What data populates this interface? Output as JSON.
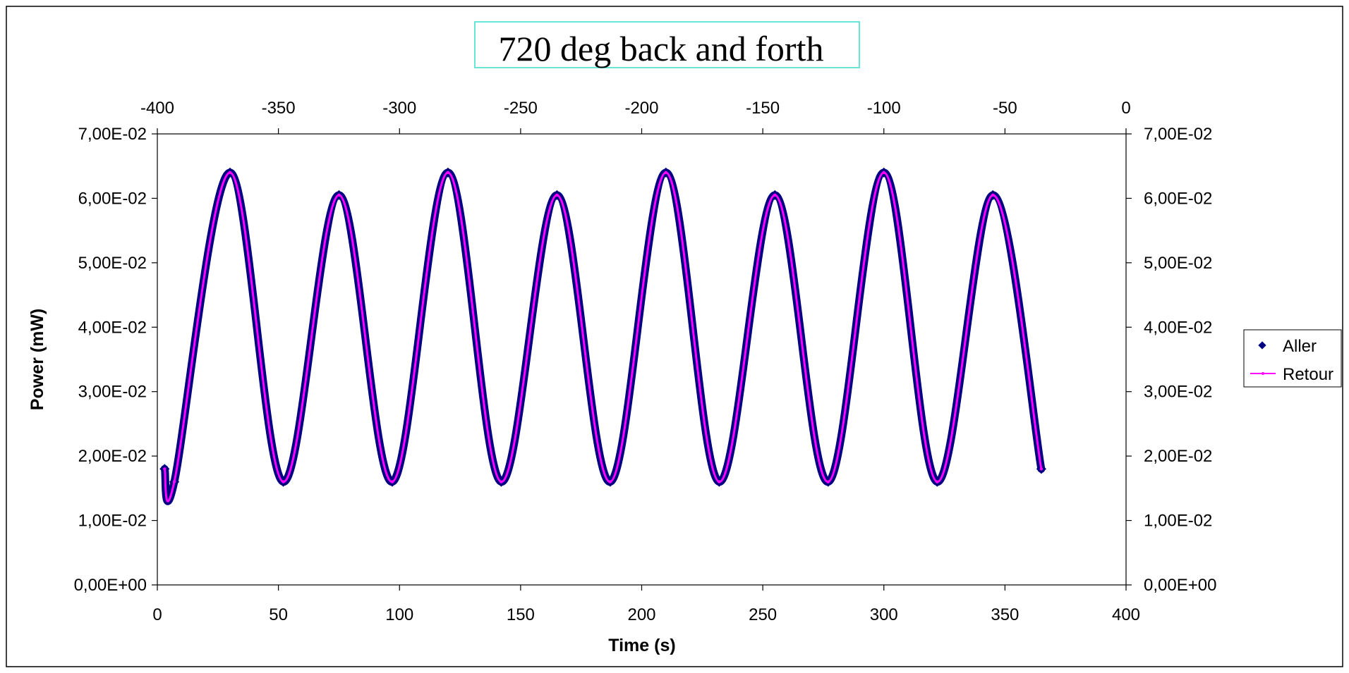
{
  "chart_data": {
    "type": "line",
    "title": "720 deg back and forth",
    "xlabel": "Time (s)",
    "ylabel": "Power (mW)",
    "xlim": [
      0,
      400
    ],
    "ylim": [
      0,
      0.07
    ],
    "x2lim": [
      -400,
      0
    ],
    "x_ticks": [
      "0",
      "50",
      "100",
      "150",
      "200",
      "250",
      "300",
      "350",
      "400"
    ],
    "x2_ticks": [
      "-400",
      "-350",
      "-300",
      "-250",
      "-200",
      "-150",
      "-100",
      "-50",
      "0"
    ],
    "y_ticks": [
      "0,00E+00",
      "1,00E-02",
      "2,00E-02",
      "3,00E-02",
      "4,00E-02",
      "5,00E-02",
      "6,00E-02",
      "7,00E-02"
    ],
    "y2_ticks": [
      "0,00E+00",
      "1,00E-02",
      "2,00E-02",
      "3,00E-02",
      "4,00E-02",
      "5,00E-02",
      "6,00E-02",
      "7,00E-02"
    ],
    "grid": false,
    "legend_position": "right",
    "series": [
      {
        "name": "Aller",
        "marker": "diamond",
        "color": "#000080",
        "x": [
          3,
          7,
          30,
          52,
          75,
          97,
          120,
          142,
          165,
          187,
          210,
          232,
          255,
          277,
          300,
          322,
          345,
          365
        ],
        "y": [
          0.018,
          0.016,
          0.064,
          0.016,
          0.0605,
          0.016,
          0.064,
          0.016,
          0.0605,
          0.016,
          0.064,
          0.016,
          0.0605,
          0.016,
          0.064,
          0.016,
          0.0605,
          0.018
        ]
      },
      {
        "name": "Retour",
        "marker": "line",
        "color": "#FF00FF",
        "x": [
          3,
          7,
          30,
          52,
          75,
          97,
          120,
          142,
          165,
          187,
          210,
          232,
          255,
          277,
          300,
          322,
          345,
          365
        ],
        "y": [
          0.018,
          0.016,
          0.064,
          0.016,
          0.0605,
          0.016,
          0.064,
          0.016,
          0.0605,
          0.016,
          0.064,
          0.016,
          0.0605,
          0.016,
          0.064,
          0.016,
          0.0605,
          0.018
        ]
      }
    ]
  }
}
